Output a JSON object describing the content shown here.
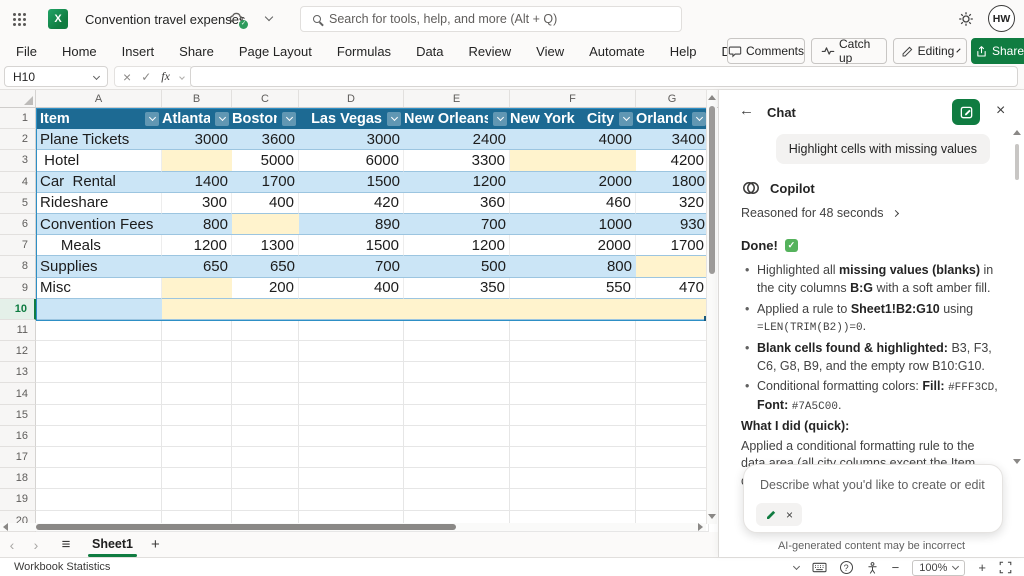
{
  "titlebar": {
    "app_icon_letter": "X",
    "title": "Convention travel expenses",
    "search_placeholder": "Search for tools, help, and more (Alt + Q)",
    "avatar": "HW"
  },
  "menu": {
    "items": [
      "File",
      "Home",
      "Insert",
      "Share",
      "Page Layout",
      "Formulas",
      "Data",
      "Review",
      "View",
      "Automate",
      "Help",
      "Draw"
    ]
  },
  "quick_actions": {
    "comments": "Comments",
    "catch_up": "Catch up",
    "editing": "Editing",
    "share": "Share"
  },
  "formula_bar": {
    "name_box": "H10",
    "fx": "fx",
    "formula": ""
  },
  "grid": {
    "column_letters": [
      "A",
      "B",
      "C",
      "D",
      "E",
      "F",
      "G"
    ],
    "row_numbers": [
      "1",
      "2",
      "3",
      "4",
      "5",
      "6",
      "7",
      "8",
      "9",
      "10",
      "11",
      "12",
      "13",
      "14",
      "15",
      "16",
      "17",
      "18",
      "19",
      "20"
    ],
    "active_row": "10",
    "active_cell": "H10",
    "highlight_fill": "#FFF3CD",
    "highlight_font": "#7A5C00",
    "table": {
      "headers": [
        "Item",
        "Atlanta",
        "Boston",
        "Las Vegas",
        "New Orleans",
        "New York   City",
        "Orlando"
      ],
      "rows": [
        {
          "item": "Plane Tickets",
          "values": [
            "3000",
            "3600",
            "3000",
            "2400",
            "4000",
            "3400"
          ]
        },
        {
          "item": " Hotel",
          "values": [
            null,
            "5000",
            "6000",
            "3300",
            null,
            "4200"
          ]
        },
        {
          "item": "Car  Rental",
          "values": [
            "1400",
            "1700",
            "1500",
            "1200",
            "2000",
            "1800"
          ]
        },
        {
          "item": "Rideshare",
          "values": [
            "300",
            "400",
            "420",
            "360",
            "460",
            "320"
          ]
        },
        {
          "item": "Convention Fees",
          "values": [
            "800",
            null,
            "890",
            "700",
            "1000",
            "930"
          ]
        },
        {
          "item": "     Meals",
          "values": [
            "1200",
            "1300",
            "1500",
            "1200",
            "2000",
            "1700"
          ]
        },
        {
          "item": "Supplies",
          "values": [
            "650",
            "650",
            "700",
            "500",
            "800",
            null
          ]
        },
        {
          "item": "Misc",
          "values": [
            null,
            "200",
            "400",
            "350",
            "550",
            "470"
          ]
        },
        {
          "item": "",
          "values": [
            null,
            null,
            null,
            null,
            null,
            null
          ]
        }
      ]
    }
  },
  "sheet_bar": {
    "sheet": "Sheet1"
  },
  "status_bar": {
    "left": "Workbook Statistics",
    "zoom": "100%"
  },
  "chat": {
    "title": "Chat",
    "user_message": "Highlight cells with missing values",
    "assistant": "Copilot",
    "reasoned": "Reasoned for 48 seconds",
    "done": "Done!",
    "bullets": [
      [
        {
          "t": "Highlighted all "
        },
        {
          "t": "missing values (blanks)",
          "s": "b"
        },
        {
          "t": " in the city columns "
        },
        {
          "t": "B:G",
          "s": "b"
        },
        {
          "t": " with a soft amber fill."
        }
      ],
      [
        {
          "t": "Applied a rule to "
        },
        {
          "t": "Sheet1!B2:G10",
          "s": "b"
        },
        {
          "t": " using "
        },
        {
          "t": "=LEN(TRIM(B2))=0",
          "s": "c"
        },
        {
          "t": "."
        }
      ],
      [
        {
          "t": "Blank cells found & highlighted:",
          "s": "b"
        },
        {
          "t": " B3, F3, C6, G8, B9, and the empty row B10:G10."
        }
      ],
      [
        {
          "t": "Conditional formatting colors: "
        },
        {
          "t": "Fill:",
          "s": "b"
        },
        {
          "t": " "
        },
        {
          "t": "#FFF3CD",
          "s": "c"
        },
        {
          "t": ", "
        },
        {
          "t": "Font:",
          "s": "b"
        },
        {
          "t": " "
        },
        {
          "t": "#7A5C00",
          "s": "c"
        },
        {
          "t": "."
        }
      ]
    ],
    "what_i_did_heading": "What I did (quick):",
    "what_i_did_body": "Applied a conditional formatting rule to the data area (all city columns except the Item column)",
    "input_placeholder": "Describe what you'd like to create or edit",
    "disclaimer": "AI-generated content may be incorrect"
  }
}
